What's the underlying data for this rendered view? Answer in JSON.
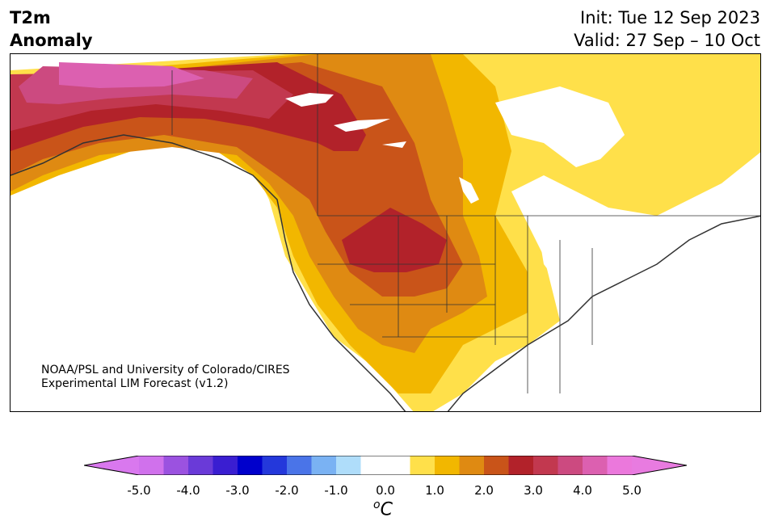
{
  "header": {
    "title_line1": "T2m",
    "title_line2": "Anomaly",
    "init": "Init: Tue 12 Sep 2023",
    "valid": "Valid: 27 Sep – 10 Oct"
  },
  "map": {
    "credit_line1": "NOAA/PSL and University of Colorado/CIRES",
    "credit_line2": "Experimental LIM Forecast (v1.2)"
  },
  "colorbar": {
    "ticks": [
      "-5.0",
      "-4.0",
      "-3.0",
      "-2.0",
      "-1.0",
      "0.0",
      "1.0",
      "2.0",
      "3.0",
      "4.0",
      "5.0"
    ],
    "unit_symbol": "o",
    "unit_letter": "C",
    "colors": [
      "#d071ec",
      "#9b52e0",
      "#6a3ad8",
      "#3a1ed1",
      "#0000cc",
      "#2438db",
      "#4a74e8",
      "#7ab2f3",
      "#afddfa",
      "#ffffff",
      "#ffffff",
      "#ffe04a",
      "#f2b700",
      "#df8a12",
      "#c95419",
      "#b2222a",
      "#c2384f",
      "#cc4a80",
      "#dc60b0",
      "#eb78dc"
    ],
    "under_color": "#d978ee",
    "over_color": "#e87be0"
  }
}
